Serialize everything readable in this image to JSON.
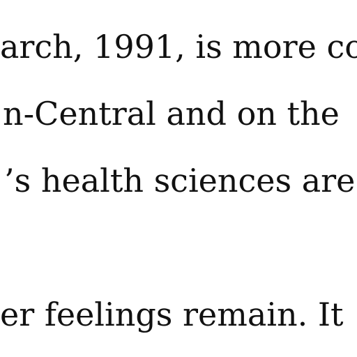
{
  "article": {
    "lines": [
      "arch, 1991, is more co",
      "n-Central and on the",
      "’s health sciences are",
      "er feelings remain. It"
    ]
  },
  "colors": {
    "background": "#ffffff",
    "text": "#111111"
  }
}
